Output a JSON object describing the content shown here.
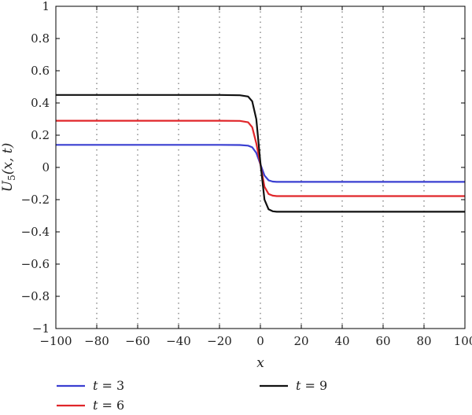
{
  "chart_data": {
    "type": "line",
    "xlabel": "x",
    "ylabel": "U5(x, t)",
    "ylabel_main": "U",
    "ylabel_sub": "5",
    "ylabel_args": "(x, t)",
    "xlim": [
      -100,
      100
    ],
    "ylim": [
      -1,
      1
    ],
    "xticks": [
      -100,
      -80,
      -60,
      -40,
      -20,
      0,
      20,
      40,
      60,
      80,
      100
    ],
    "yticks": [
      -1,
      -0.8,
      -0.6,
      -0.4,
      -0.2,
      0,
      0.2,
      0.4,
      0.6,
      0.8,
      1
    ],
    "xtick_labels": [
      "−100",
      "−80",
      "−60",
      "−40",
      "−20",
      "0",
      "20",
      "40",
      "60",
      "80",
      "100"
    ],
    "ytick_labels": [
      "−1",
      "−0.8",
      "−0.6",
      "−0.4",
      "−0.2",
      "0",
      "0.2",
      "0.4",
      "0.6",
      "0.8",
      "1"
    ],
    "grid": "vertical dotted",
    "legend_placement": "below",
    "series": [
      {
        "name": "t = 3",
        "var": "t",
        "value": "3",
        "color": "#3a3fd1",
        "x": [
          -100,
          -20,
          -10,
          -6,
          -4,
          -2,
          0,
          2,
          4,
          6,
          8,
          10,
          20,
          100
        ],
        "y": [
          0.14,
          0.14,
          0.139,
          0.135,
          0.125,
          0.09,
          0.02,
          -0.05,
          -0.08,
          -0.088,
          -0.09,
          -0.09,
          -0.09,
          -0.09
        ]
      },
      {
        "name": "t = 6",
        "var": "t",
        "value": "6",
        "color": "#e0262a",
        "x": [
          -100,
          -20,
          -10,
          -6,
          -4,
          -2,
          0,
          2,
          4,
          6,
          8,
          10,
          20,
          100
        ],
        "y": [
          0.29,
          0.29,
          0.289,
          0.28,
          0.25,
          0.15,
          0.02,
          -0.12,
          -0.165,
          -0.175,
          -0.178,
          -0.178,
          -0.178,
          -0.178
        ]
      },
      {
        "name": "t = 9",
        "var": "t",
        "value": "9",
        "color": "#111111",
        "x": [
          -100,
          -20,
          -10,
          -6,
          -4,
          -2,
          0,
          2,
          4,
          6,
          8,
          10,
          20,
          100
        ],
        "y": [
          0.45,
          0.45,
          0.448,
          0.44,
          0.41,
          0.3,
          0.03,
          -0.2,
          -0.26,
          -0.272,
          -0.275,
          -0.275,
          -0.275,
          -0.275
        ]
      }
    ]
  }
}
